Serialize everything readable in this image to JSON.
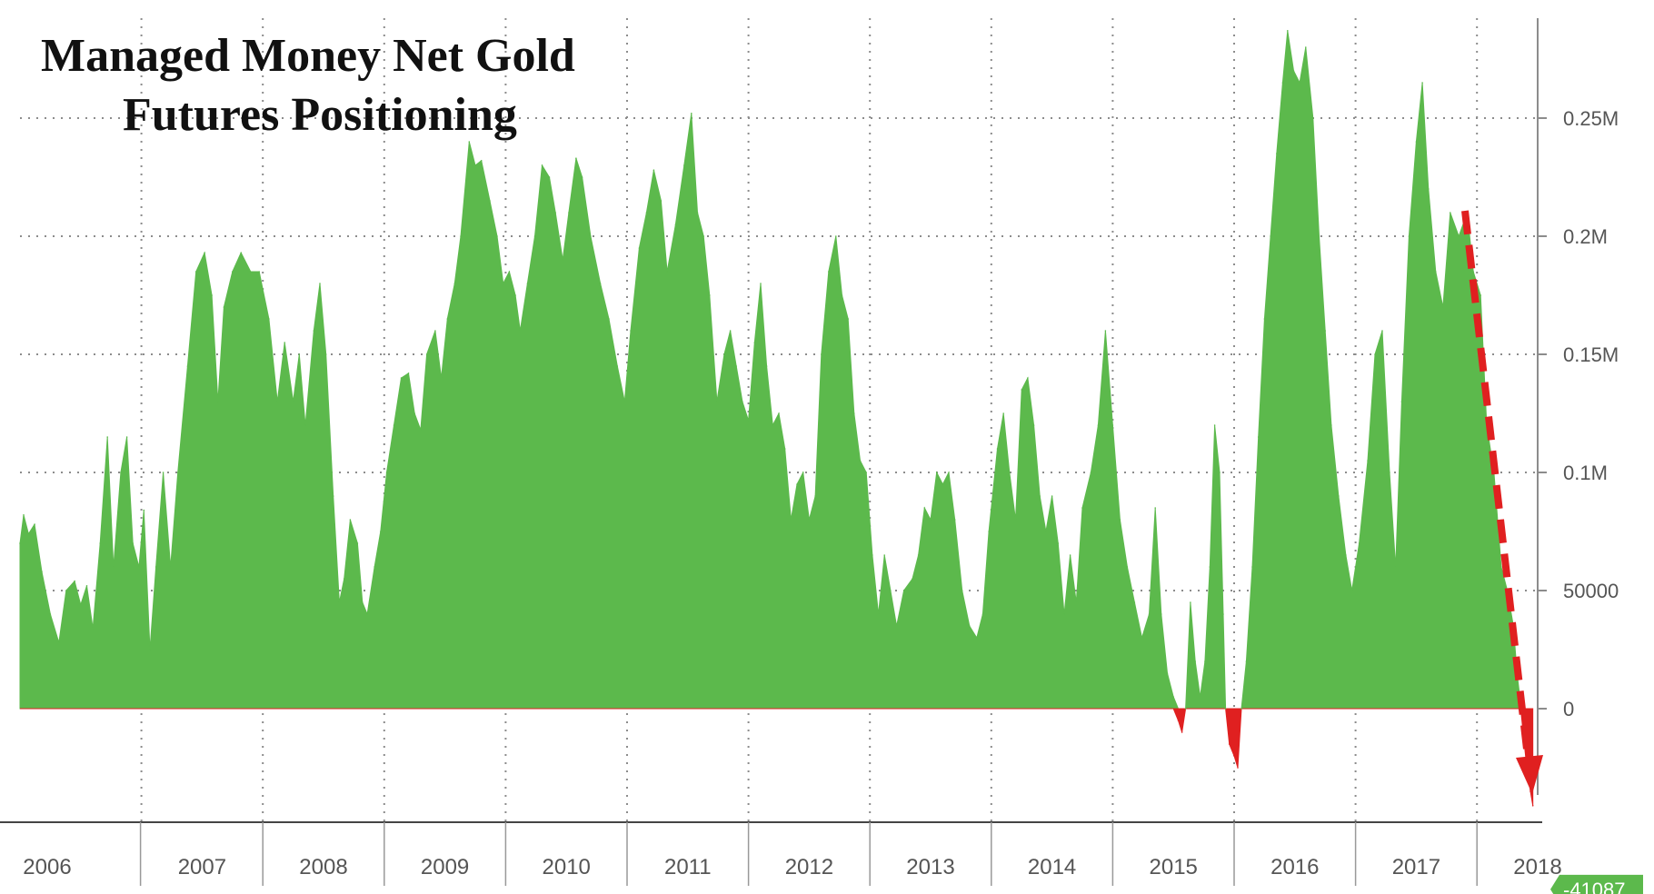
{
  "colors": {
    "positive": "#5cb94c",
    "negative": "#e02020",
    "arrow": "#e02020",
    "grid": "#8c8c8c",
    "axis_text": "#555555",
    "last_value_badge": "#5cb94c"
  },
  "chart_data": {
    "type": "area",
    "title": "Managed Money Net Gold Futures Positioning",
    "title_lines": [
      "Managed Money Net Gold",
      "Futures Positioning"
    ],
    "xlabel": "",
    "ylabel": "",
    "x_tick_labels": [
      "2006",
      "2007",
      "2008",
      "2009",
      "2010",
      "2011",
      "2012",
      "2013",
      "2014",
      "2015",
      "2016",
      "2017",
      "2018"
    ],
    "y_tick_labels": [
      "0.25M",
      "0.2M",
      "0.15M",
      "0.1M",
      "50000",
      "0"
    ],
    "y_ticks": [
      250000,
      200000,
      150000,
      100000,
      50000,
      0
    ],
    "xlim": [
      2006.0,
      2018.5
    ],
    "ylim": [
      -48000,
      295000
    ],
    "grid": true,
    "y_axis_side": "right",
    "last_value_label": "-41087",
    "last_value": -41087,
    "annotation": "red dashed arrow pointing down at the 2018 drop",
    "series": [
      {
        "points": [
          [
            2006.0,
            70000
          ],
          [
            2006.03,
            82000
          ],
          [
            2006.07,
            74000
          ],
          [
            2006.12,
            78000
          ],
          [
            2006.18,
            58000
          ],
          [
            2006.25,
            40000
          ],
          [
            2006.32,
            28000
          ],
          [
            2006.38,
            50000
          ],
          [
            2006.45,
            54000
          ],
          [
            2006.5,
            44000
          ],
          [
            2006.55,
            52000
          ],
          [
            2006.6,
            34000
          ],
          [
            2006.66,
            70000
          ],
          [
            2006.72,
            115000
          ],
          [
            2006.77,
            60000
          ],
          [
            2006.83,
            100000
          ],
          [
            2006.88,
            115000
          ],
          [
            2006.93,
            70000
          ],
          [
            2006.98,
            60000
          ],
          [
            2007.02,
            84000
          ],
          [
            2007.07,
            25000
          ],
          [
            2007.12,
            60000
          ],
          [
            2007.18,
            100000
          ],
          [
            2007.24,
            60000
          ],
          [
            2007.3,
            100000
          ],
          [
            2007.38,
            145000
          ],
          [
            2007.45,
            185000
          ],
          [
            2007.52,
            193000
          ],
          [
            2007.58,
            175000
          ],
          [
            2007.63,
            130000
          ],
          [
            2007.68,
            170000
          ],
          [
            2007.75,
            185000
          ],
          [
            2007.82,
            193000
          ],
          [
            2007.9,
            185000
          ],
          [
            2007.97,
            185000
          ],
          [
            2008.05,
            165000
          ],
          [
            2008.12,
            130000
          ],
          [
            2008.18,
            155000
          ],
          [
            2008.25,
            130000
          ],
          [
            2008.3,
            150000
          ],
          [
            2008.35,
            120000
          ],
          [
            2008.42,
            160000
          ],
          [
            2008.47,
            180000
          ],
          [
            2008.52,
            150000
          ],
          [
            2008.58,
            90000
          ],
          [
            2008.63,
            45000
          ],
          [
            2008.67,
            55000
          ],
          [
            2008.72,
            80000
          ],
          [
            2008.78,
            70000
          ],
          [
            2008.82,
            45000
          ],
          [
            2008.86,
            40000
          ],
          [
            2008.92,
            60000
          ],
          [
            2008.97,
            75000
          ],
          [
            2009.02,
            100000
          ],
          [
            2009.08,
            120000
          ],
          [
            2009.14,
            140000
          ],
          [
            2009.2,
            142000
          ],
          [
            2009.25,
            125000
          ],
          [
            2009.3,
            118000
          ],
          [
            2009.35,
            150000
          ],
          [
            2009.42,
            160000
          ],
          [
            2009.47,
            140000
          ],
          [
            2009.52,
            165000
          ],
          [
            2009.58,
            180000
          ],
          [
            2009.63,
            200000
          ],
          [
            2009.7,
            240000
          ],
          [
            2009.75,
            230000
          ],
          [
            2009.8,
            232000
          ],
          [
            2009.87,
            215000
          ],
          [
            2009.93,
            200000
          ],
          [
            2009.98,
            180000
          ],
          [
            2010.03,
            185000
          ],
          [
            2010.08,
            175000
          ],
          [
            2010.12,
            160000
          ],
          [
            2010.18,
            180000
          ],
          [
            2010.24,
            200000
          ],
          [
            2010.3,
            230000
          ],
          [
            2010.36,
            225000
          ],
          [
            2010.41,
            210000
          ],
          [
            2010.47,
            190000
          ],
          [
            2010.52,
            210000
          ],
          [
            2010.58,
            233000
          ],
          [
            2010.63,
            225000
          ],
          [
            2010.7,
            200000
          ],
          [
            2010.78,
            180000
          ],
          [
            2010.85,
            165000
          ],
          [
            2010.92,
            145000
          ],
          [
            2010.98,
            130000
          ],
          [
            2011.03,
            160000
          ],
          [
            2011.1,
            195000
          ],
          [
            2011.16,
            210000
          ],
          [
            2011.22,
            228000
          ],
          [
            2011.28,
            215000
          ],
          [
            2011.33,
            185000
          ],
          [
            2011.4,
            205000
          ],
          [
            2011.47,
            230000
          ],
          [
            2011.53,
            252000
          ],
          [
            2011.58,
            210000
          ],
          [
            2011.63,
            200000
          ],
          [
            2011.68,
            175000
          ],
          [
            2011.74,
            130000
          ],
          [
            2011.8,
            150000
          ],
          [
            2011.85,
            160000
          ],
          [
            2011.9,
            145000
          ],
          [
            2011.95,
            130000
          ],
          [
            2012.0,
            122000
          ],
          [
            2012.05,
            155000
          ],
          [
            2012.1,
            180000
          ],
          [
            2012.15,
            145000
          ],
          [
            2012.2,
            120000
          ],
          [
            2012.25,
            125000
          ],
          [
            2012.3,
            110000
          ],
          [
            2012.35,
            80000
          ],
          [
            2012.4,
            95000
          ],
          [
            2012.45,
            100000
          ],
          [
            2012.5,
            80000
          ],
          [
            2012.55,
            90000
          ],
          [
            2012.6,
            150000
          ],
          [
            2012.66,
            185000
          ],
          [
            2012.72,
            200000
          ],
          [
            2012.77,
            175000
          ],
          [
            2012.82,
            165000
          ],
          [
            2012.87,
            125000
          ],
          [
            2012.92,
            105000
          ],
          [
            2012.97,
            100000
          ],
          [
            2013.02,
            65000
          ],
          [
            2013.07,
            40000
          ],
          [
            2013.12,
            65000
          ],
          [
            2013.17,
            50000
          ],
          [
            2013.22,
            35000
          ],
          [
            2013.28,
            50000
          ],
          [
            2013.35,
            55000
          ],
          [
            2013.4,
            65000
          ],
          [
            2013.45,
            85000
          ],
          [
            2013.5,
            80000
          ],
          [
            2013.55,
            100000
          ],
          [
            2013.6,
            95000
          ],
          [
            2013.65,
            100000
          ],
          [
            2013.7,
            80000
          ],
          [
            2013.76,
            50000
          ],
          [
            2013.82,
            35000
          ],
          [
            2013.88,
            30000
          ],
          [
            2013.93,
            40000
          ],
          [
            2013.98,
            75000
          ],
          [
            2014.05,
            110000
          ],
          [
            2014.1,
            125000
          ],
          [
            2014.15,
            100000
          ],
          [
            2014.2,
            80000
          ],
          [
            2014.25,
            135000
          ],
          [
            2014.3,
            140000
          ],
          [
            2014.35,
            120000
          ],
          [
            2014.4,
            90000
          ],
          [
            2014.45,
            75000
          ],
          [
            2014.5,
            90000
          ],
          [
            2014.55,
            70000
          ],
          [
            2014.6,
            40000
          ],
          [
            2014.65,
            65000
          ],
          [
            2014.7,
            45000
          ],
          [
            2014.75,
            85000
          ],
          [
            2014.82,
            100000
          ],
          [
            2014.88,
            120000
          ],
          [
            2014.94,
            160000
          ],
          [
            2015.0,
            120000
          ],
          [
            2015.06,
            80000
          ],
          [
            2015.12,
            60000
          ],
          [
            2015.18,
            45000
          ],
          [
            2015.24,
            30000
          ],
          [
            2015.3,
            40000
          ],
          [
            2015.35,
            85000
          ],
          [
            2015.4,
            40000
          ],
          [
            2015.45,
            15000
          ],
          [
            2015.5,
            5000
          ],
          [
            2015.54,
            -5000
          ],
          [
            2015.57,
            -10000
          ],
          [
            2015.6,
            0
          ],
          [
            2015.64,
            45000
          ],
          [
            2015.68,
            20000
          ],
          [
            2015.72,
            5000
          ],
          [
            2015.76,
            20000
          ],
          [
            2015.8,
            60000
          ],
          [
            2015.84,
            120000
          ],
          [
            2015.88,
            100000
          ],
          [
            2015.91,
            40000
          ],
          [
            2015.93,
            0
          ],
          [
            2015.96,
            -15000
          ],
          [
            2016.0,
            -20000
          ],
          [
            2016.03,
            -25000
          ],
          [
            2016.06,
            0
          ],
          [
            2016.1,
            20000
          ],
          [
            2016.15,
            60000
          ],
          [
            2016.2,
            115000
          ],
          [
            2016.25,
            165000
          ],
          [
            2016.3,
            200000
          ],
          [
            2016.35,
            235000
          ],
          [
            2016.4,
            265000
          ],
          [
            2016.44,
            287000
          ],
          [
            2016.49,
            270000
          ],
          [
            2016.54,
            265000
          ],
          [
            2016.59,
            280000
          ],
          [
            2016.65,
            250000
          ],
          [
            2016.7,
            200000
          ],
          [
            2016.75,
            160000
          ],
          [
            2016.8,
            120000
          ],
          [
            2016.86,
            90000
          ],
          [
            2016.92,
            65000
          ],
          [
            2016.97,
            50000
          ],
          [
            2017.03,
            70000
          ],
          [
            2017.1,
            105000
          ],
          [
            2017.16,
            150000
          ],
          [
            2017.22,
            160000
          ],
          [
            2017.28,
            100000
          ],
          [
            2017.33,
            60000
          ],
          [
            2017.38,
            130000
          ],
          [
            2017.44,
            200000
          ],
          [
            2017.5,
            240000
          ],
          [
            2017.55,
            265000
          ],
          [
            2017.6,
            220000
          ],
          [
            2017.66,
            185000
          ],
          [
            2017.72,
            170000
          ],
          [
            2017.78,
            210000
          ],
          [
            2017.85,
            200000
          ],
          [
            2017.92,
            210000
          ],
          [
            2017.97,
            185000
          ],
          [
            2018.03,
            175000
          ],
          [
            2018.08,
            120000
          ],
          [
            2018.14,
            100000
          ],
          [
            2018.2,
            60000
          ],
          [
            2018.25,
            50000
          ],
          [
            2018.3,
            35000
          ],
          [
            2018.33,
            15000
          ],
          [
            2018.36,
            2000
          ],
          [
            2018.38,
            -10000
          ],
          [
            2018.41,
            -25000
          ],
          [
            2018.44,
            -35000
          ],
          [
            2018.46,
            -41087
          ]
        ]
      }
    ]
  }
}
